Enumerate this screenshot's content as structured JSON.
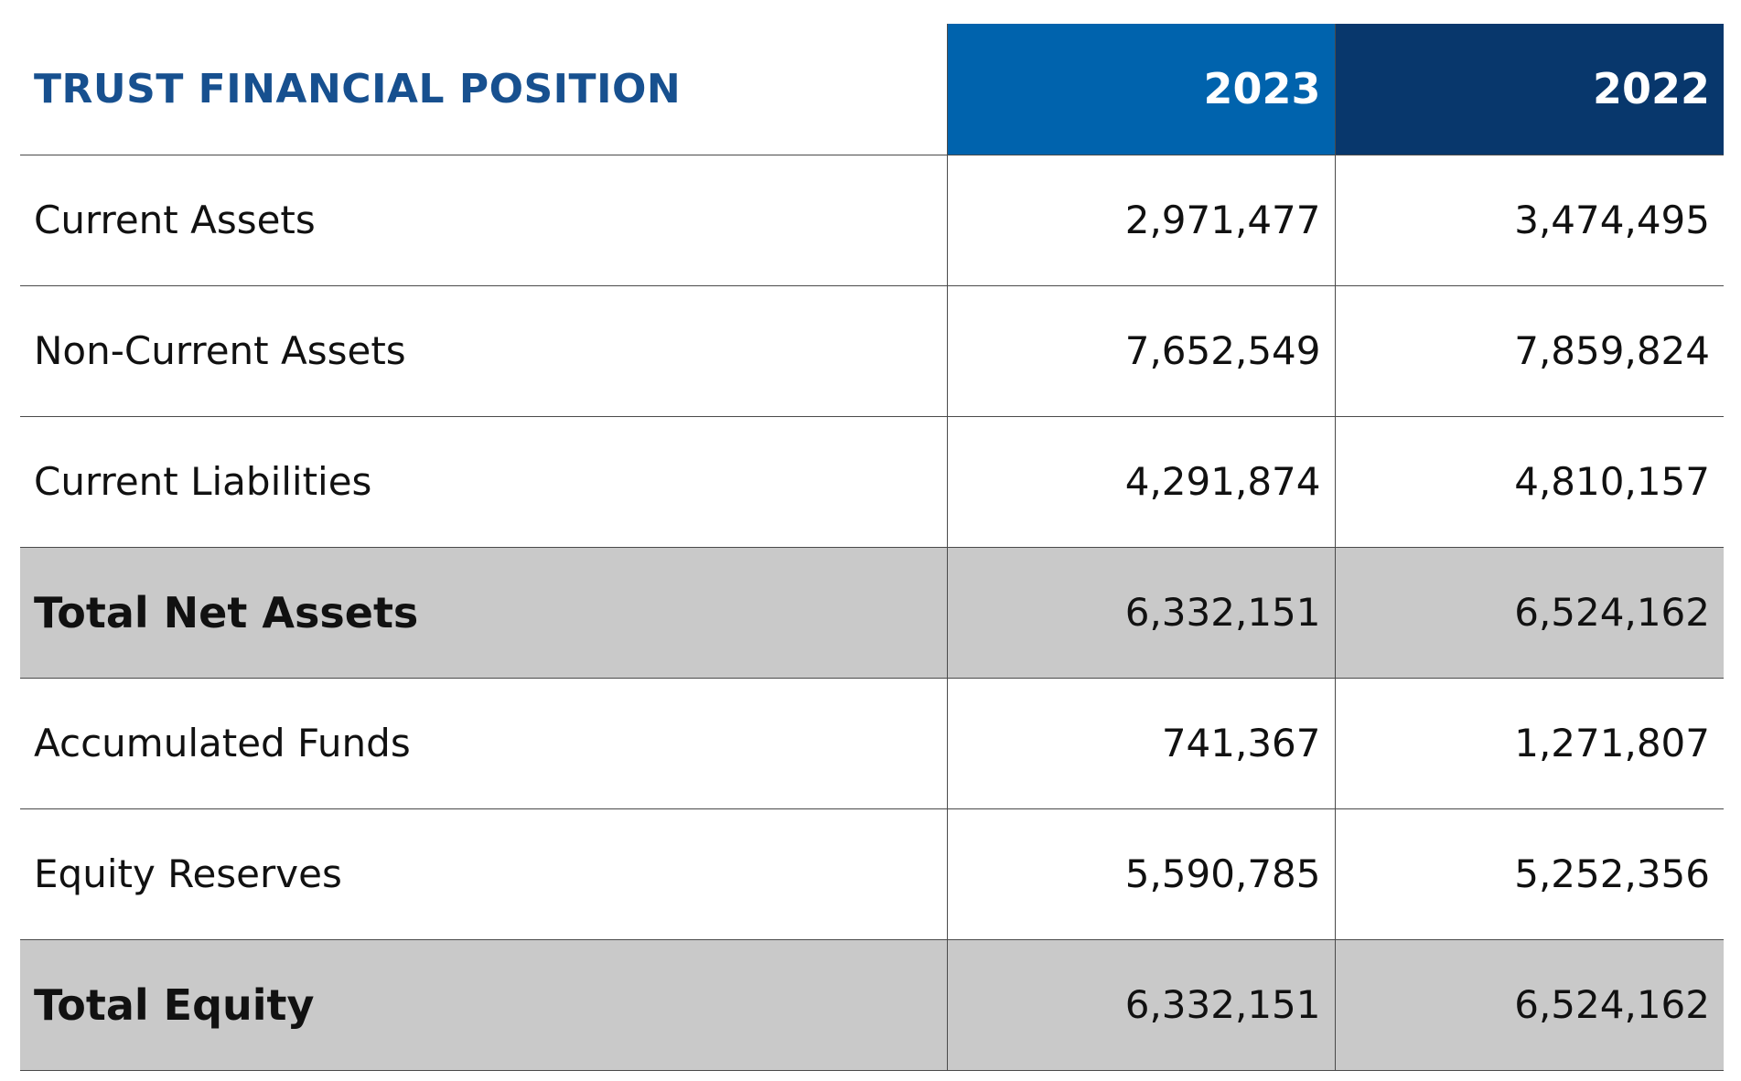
{
  "table": {
    "title": "TRUST FINANCIAL POSITION",
    "columns": [
      "2023",
      "2022"
    ],
    "rows": [
      {
        "label": "Current Assets",
        "v2023": "2,971,477",
        "v2022": "3,474,495"
      },
      {
        "label": "Non-Current Assets",
        "v2023": "7,652,549",
        "v2022": "7,859,824"
      },
      {
        "label": "Current Liabilities",
        "v2023": "4,291,874",
        "v2022": "4,810,157"
      },
      {
        "label": "Total Net Assets",
        "v2023": "6,332,151",
        "v2022": "6,524,162"
      },
      {
        "label": "Accumulated Funds",
        "v2023": "741,367",
        "v2022": "1,271,807"
      },
      {
        "label": "Equity Reserves",
        "v2023": "5,590,785",
        "v2022": "5,252,356"
      },
      {
        "label": "Total Equity",
        "v2023": "6,332,151",
        "v2022": "6,524,162"
      }
    ]
  },
  "colors": {
    "title_text": "#17508f",
    "header_2023_bg": "#0063ad",
    "header_2022_bg": "#08376c",
    "total_row_bg": "#c9c9c9"
  }
}
